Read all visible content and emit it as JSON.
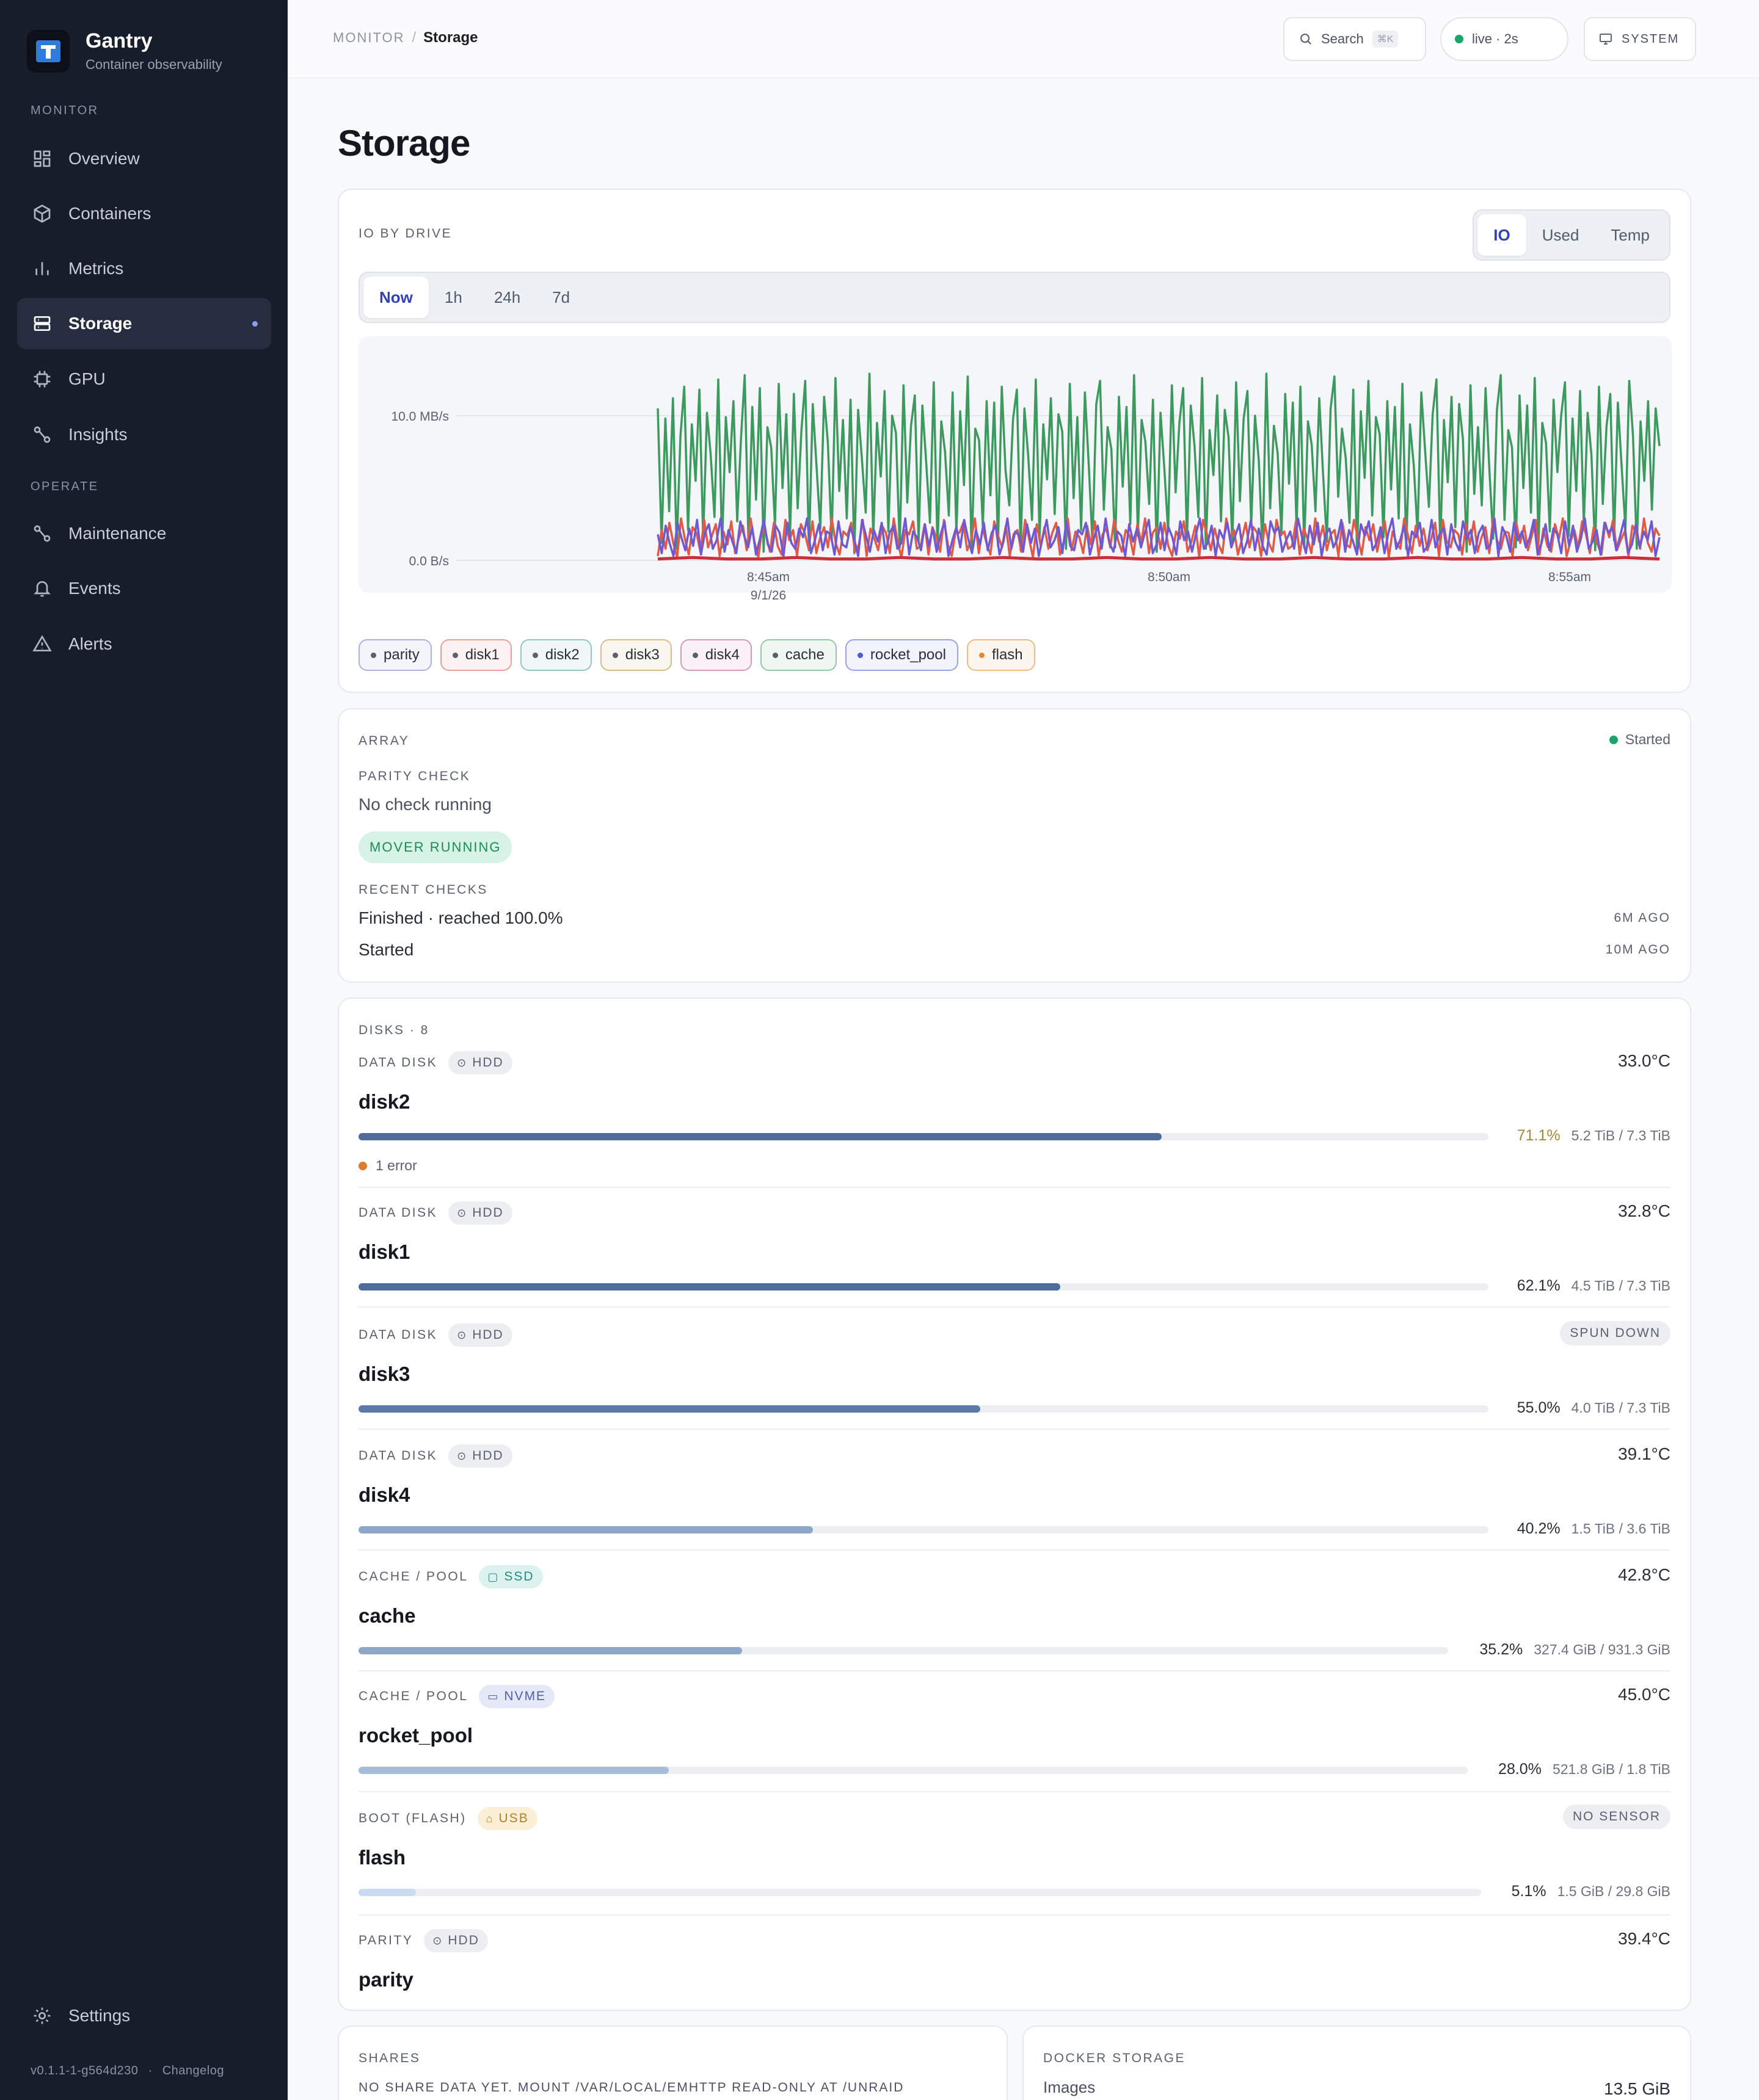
{
  "app": {
    "name": "Gantry",
    "subtitle": "Container observability"
  },
  "nav": {
    "monitor_label": "MONITOR",
    "operate_label": "OPERATE",
    "items": [
      {
        "label": "Overview",
        "icon": "grid-icon"
      },
      {
        "label": "Containers",
        "icon": "box-icon"
      },
      {
        "label": "Metrics",
        "icon": "bar-chart-icon"
      },
      {
        "label": "Storage",
        "icon": "storage-icon",
        "active": true
      },
      {
        "label": "GPU",
        "icon": "chip-icon"
      },
      {
        "label": "Insights",
        "icon": "route-icon"
      }
    ],
    "operate_items": [
      {
        "label": "Maintenance",
        "icon": "route-icon"
      },
      {
        "label": "Events",
        "icon": "bell-icon"
      },
      {
        "label": "Alerts",
        "icon": "warning-icon"
      }
    ],
    "settings": "Settings",
    "version": "v0.1.1-1-g564d230",
    "footer_sep": "·",
    "changelog": "Changelog"
  },
  "topbar": {
    "crumb_parent": "MONITOR",
    "crumb_sep": "/",
    "crumb_current": "Storage",
    "search": "Search",
    "search_kbd": "⌘K",
    "live": "live · 2s",
    "system": "SYSTEM"
  },
  "page": {
    "title": "Storage"
  },
  "io_card": {
    "label": "IO BY DRIVE",
    "modes": [
      "IO",
      "Used",
      "Temp"
    ],
    "active_mode": "IO",
    "ranges": [
      "Now",
      "1h",
      "24h",
      "7d"
    ],
    "active_range": "Now",
    "legend": [
      {
        "name": "parity",
        "color": "#6f74c9"
      },
      {
        "name": "disk1",
        "color": "#d9584a"
      },
      {
        "name": "disk2",
        "color": "#3f9e8c"
      },
      {
        "name": "disk3",
        "color": "#b58a2e"
      },
      {
        "name": "disk4",
        "color": "#b8507a"
      },
      {
        "name": "cache",
        "color": "#3f9e6a"
      },
      {
        "name": "rocket_pool",
        "color": "#4a5bd6"
      },
      {
        "name": "flash",
        "color": "#e08a2e"
      }
    ]
  },
  "chart_data": {
    "type": "line",
    "title": "",
    "ylabel": "",
    "y_ticks": [
      "10.0 MB/s",
      "0.0 B/s"
    ],
    "x_ticks": [
      "8:45am",
      "8:50am",
      "8:55am"
    ],
    "x_date": "9/1/26",
    "ylim": [
      0,
      14
    ],
    "grid": true,
    "series": [
      {
        "name": "cache",
        "color": "#3d9a5f",
        "values": [
          10.5,
          1.2,
          9.8,
          3.4,
          11.2,
          0.8,
          8.6,
          12.0,
          2.1,
          9.4,
          5.5,
          11.8,
          1.5,
          10.2,
          7.3,
          3.0,
          12.5,
          0.9,
          9.9,
          6.1,
          11.0,
          2.7,
          8.4,
          12.8,
          1.1,
          10.6,
          4.2,
          11.9,
          0.6,
          9.2,
          7.8,
          2.4,
          12.2,
          5.0,
          10.1,
          1.8,
          11.5,
          3.6,
          9.0,
          12.4,
          0.7,
          10.8,
          6.5,
          2.2,
          11.3,
          8.1,
          1.4,
          12.6,
          4.8,
          9.7,
          2.9,
          11.1,
          0.5,
          10.4,
          7.0,
          3.3,
          12.9,
          1.6,
          9.5,
          5.8,
          11.7,
          2.0,
          10.0,
          8.8,
          0.9,
          12.1,
          4.0,
          9.3,
          11.4,
          1.3,
          10.7,
          6.8,
          2.6,
          12.3,
          0.8,
          9.6,
          7.5,
          3.1,
          11.6,
          1.9,
          10.3,
          5.2,
          12.7,
          0.6,
          9.1,
          8.3,
          2.3,
          11.0,
          4.5,
          10.9,
          1.0,
          12.0,
          6.2,
          3.8,
          9.8,
          11.8,
          0.7,
          10.5,
          7.2,
          2.8,
          12.5,
          1.5,
          9.4,
          5.6,
          11.2,
          3.2,
          10.1,
          8.9,
          0.8,
          12.2,
          4.3,
          9.9,
          2.1,
          11.6,
          6.7,
          1.2,
          10.8,
          12.4,
          3.5,
          9.2,
          7.7,
          0.9,
          11.3,
          5.1,
          10.6,
          2.5,
          12.8,
          1.7,
          9.7,
          8.2,
          3.9,
          11.1,
          0.6,
          10.2,
          6.4,
          2.0,
          12.1,
          4.7,
          9.5,
          11.9,
          1.4,
          10.7,
          7.9,
          3.0,
          12.6,
          0.8,
          9.0,
          5.9,
          11.4,
          2.7,
          10.4,
          8.5,
          1.1,
          12.3,
          4.1,
          9.8,
          11.7,
          2.4,
          10.0,
          6.9,
          0.7,
          12.9,
          3.6,
          9.3,
          7.4,
          1.8,
          11.5,
          5.3,
          10.9,
          2.2,
          12.0,
          0.9,
          9.6,
          8.0,
          3.4,
          11.2,
          6.0,
          1.3,
          10.5,
          12.7,
          4.4,
          9.1,
          7.1,
          2.6,
          11.8,
          0.5,
          10.3,
          5.7,
          12.4,
          3.1,
          9.9,
          8.7,
          1.6,
          11.0,
          4.9,
          10.6,
          2.9,
          12.2,
          0.8,
          9.4,
          6.6,
          1.9,
          11.6,
          7.6,
          3.7,
          10.1,
          12.5,
          1.0,
          9.7,
          5.4,
          11.3,
          2.3,
          10.8,
          8.4,
          0.6,
          12.1,
          4.6,
          9.2,
          3.8,
          11.9,
          6.3,
          1.5,
          10.4,
          12.8,
          2.8,
          9.0,
          7.8,
          0.9,
          11.4,
          5.0,
          10.7,
          3.3,
          12.6,
          1.2,
          9.5,
          8.1,
          2.0,
          11.1,
          6.1,
          10.0,
          12.3,
          1.7,
          9.8,
          4.8,
          11.7,
          2.5,
          10.2,
          7.3,
          0.7,
          12.0,
          3.9,
          9.3,
          11.5,
          1.4,
          10.9,
          6.5,
          2.2,
          12.4,
          8.6,
          0.8,
          9.6,
          5.5,
          11.0,
          3.5,
          10.5,
          7.9
        ]
      },
      {
        "name": "disk1",
        "color": "#e25a46",
        "values": [
          0.3,
          2.1,
          0.8,
          2.6,
          1.2,
          0.2,
          2.9,
          1.5,
          0.4,
          2.3,
          1.9,
          0.6,
          2.8,
          0.9,
          1.7,
          2.5,
          0.3,
          2.0,
          1.1,
          2.7,
          0.5,
          1.6,
          2.4,
          0.7,
          2.9,
          1.3,
          0.2,
          2.2,
          1.8,
          0.6,
          2.6,
          1.0,
          0.4,
          2.8,
          1.4,
          2.1,
          0.3,
          2.5,
          1.9,
          0.8,
          2.7,
          0.5,
          1.6,
          2.3,
          0.9,
          2.9,
          1.2,
          0.4,
          2.0,
          1.7,
          2.6,
          0.6,
          1.1,
          2.8,
          0.3,
          2.2,
          1.5,
          0.7,
          2.4,
          1.9,
          0.5,
          2.9,
          1.3,
          0.2,
          2.1,
          1.8,
          2.7,
          0.8,
          1.0,
          2.5,
          0.4,
          2.3,
          1.6,
          0.6,
          2.8,
          1.1,
          0.3,
          2.0,
          1.9,
          2.6,
          0.7,
          1.4,
          2.9,
          0.5,
          2.2,
          1.2,
          0.4,
          2.7,
          1.7,
          0.9,
          2.4,
          0.3,
          1.8,
          2.1,
          0.6,
          2.8,
          1.5,
          0.2,
          2.5,
          1.0,
          2.3,
          0.8,
          1.9,
          2.6,
          0.4,
          1.3,
          2.9,
          0.7,
          2.0,
          1.6,
          0.5,
          2.4,
          1.1,
          2.7,
          0.3,
          1.8,
          2.2,
          0.9,
          2.8,
          1.4,
          0.6,
          2.1,
          1.7,
          0.4,
          2.5,
          1.2,
          2.9,
          0.5,
          1.9,
          2.3,
          0.8,
          2.6,
          1.0,
          0.3,
          2.0,
          1.5,
          2.7,
          0.6,
          1.3,
          2.4,
          0.2,
          2.8,
          1.8,
          0.7,
          2.2,
          1.1,
          0.5,
          2.9,
          1.6,
          2.1,
          0.4,
          1.4,
          2.6,
          0.9,
          2.3,
          1.9,
          0.3,
          2.5,
          1.2,
          0.6,
          2.8,
          1.7,
          2.0,
          0.8,
          1.0,
          2.7,
          0.4,
          2.2,
          1.5,
          0.5,
          2.9,
          1.3,
          2.4,
          0.7,
          1.8,
          2.1,
          0.3,
          2.6,
          1.1,
          0.9,
          2.8,
          1.6,
          0.4,
          2.3,
          1.4,
          2.5,
          0.6,
          1.9,
          2.7,
          0.2,
          2.0,
          1.2,
          0.8,
          2.9,
          1.7,
          0.5,
          2.4,
          1.0,
          2.2,
          0.7,
          1.5,
          2.6,
          0.3,
          2.8,
          1.3,
          0.9,
          2.1,
          1.8,
          0.4,
          2.5,
          1.1,
          2.7,
          0.6,
          1.6,
          2.3,
          0.5,
          2.9,
          1.4,
          0.8,
          2.0,
          1.9,
          0.3,
          2.6,
          1.2,
          2.4,
          0.7,
          1.7,
          2.8,
          0.4,
          2.2,
          1.0,
          0.6,
          2.5,
          1.5,
          2.9,
          0.3,
          1.3,
          2.1,
          0.9,
          2.7,
          1.8,
          0.5,
          2.3,
          1.1,
          0.4,
          2.6,
          1.6,
          2.8,
          0.7,
          1.4,
          2.0,
          0.3,
          2.4,
          1.9,
          0.8,
          2.9,
          1.2,
          0.6,
          2.2,
          1.7
        ]
      },
      {
        "name": "rocket_pool",
        "color": "#6e58d4",
        "values": [
          1.8,
          0.5,
          2.4,
          1.2,
          0.3,
          2.6,
          1.6,
          0.7,
          2.2,
          1.0,
          2.8,
          0.4,
          1.9,
          2.5,
          0.8,
          1.4,
          2.9,
          0.6,
          2.1,
          1.3,
          0.5,
          2.7,
          1.7,
          0.9,
          2.3,
          0.4,
          1.5,
          2.8,
          1.1,
          0.6,
          2.4,
          1.9,
          0.3,
          2.6,
          1.2,
          0.8,
          2.2,
          1.6,
          2.9,
          0.5,
          1.4,
          2.5,
          0.7,
          2.0,
          1.8,
          0.4,
          2.7,
          1.1,
          0.9,
          2.3,
          1.5,
          0.3,
          2.8,
          1.7,
          0.6,
          2.1,
          1.3,
          2.6,
          0.5,
          1.9,
          2.4,
          0.8,
          1.2,
          2.9,
          0.4,
          2.0,
          1.6,
          0.7,
          2.5,
          1.0,
          2.2,
          0.6,
          1.8,
          2.7,
          0.3,
          1.4,
          2.3,
          0.9,
          2.8,
          1.5,
          0.5,
          2.1,
          1.1,
          2.6,
          0.7,
          1.9,
          2.4,
          0.4,
          1.3,
          2.9,
          0.8,
          2.0,
          1.7,
          0.6,
          2.5,
          1.2,
          2.2,
          0.3,
          1.6,
          2.8,
          0.9,
          1.4,
          2.3,
          0.5,
          2.7,
          1.0,
          0.7,
          2.1,
          1.8,
          2.6,
          0.4,
          1.5,
          2.4,
          0.8,
          2.9,
          1.2,
          0.6,
          2.0,
          1.7,
          0.3,
          2.5,
          1.3,
          2.2,
          0.9,
          1.9,
          2.8,
          0.5,
          1.1,
          2.6,
          0.7,
          2.3,
          1.6,
          0.4,
          2.7,
          1.4,
          2.0,
          0.6,
          1.8,
          2.9,
          0.8,
          1.2,
          2.4,
          0.3,
          2.1,
          1.5,
          2.6,
          0.9,
          1.7,
          2.5,
          0.5,
          1.3,
          2.8,
          0.7,
          2.2,
          1.0,
          0.4,
          2.7,
          1.9,
          2.3,
          0.6,
          1.4,
          2.0,
          0.8,
          2.9,
          1.6,
          0.5,
          2.4,
          1.1,
          2.6,
          0.3,
          1.8,
          2.2,
          0.9,
          1.5,
          2.8,
          0.6,
          2.1,
          1.3,
          0.4,
          2.5,
          1.7,
          2.7,
          0.7,
          1.2,
          2.3,
          0.5,
          1.9,
          2.9,
          0.8,
          1.4,
          2.4,
          0.3,
          2.0,
          1.6,
          2.6,
          0.6,
          1.0,
          2.8,
          0.9,
          1.8,
          2.2,
          0.4,
          2.5,
          1.3,
          0.7,
          2.7,
          1.5,
          2.1,
          0.5,
          1.9,
          2.4,
          0.8,
          1.1,
          2.9,
          0.3,
          2.3,
          1.7,
          0.6,
          2.6,
          1.4,
          2.0,
          0.9,
          1.6,
          2.8,
          0.4,
          1.2,
          2.5,
          0.7,
          2.2,
          1.8,
          0.5,
          2.7,
          1.0,
          2.4,
          0.6,
          1.5,
          2.9,
          0.8,
          1.3,
          2.1,
          0.4,
          2.6,
          1.9,
          2.3,
          0.7,
          1.7,
          2.8,
          0.5,
          1.1,
          2.5,
          0.9,
          2.0,
          1.4,
          2.7,
          0.3,
          1.6
        ]
      },
      {
        "name": "parity",
        "color": "#c9303a",
        "values": [
          0.1,
          0.2,
          0.1,
          0.1,
          0.2,
          0.1,
          0.1,
          0.2,
          0.1,
          0.1,
          0.2,
          0.1,
          0.1,
          0.2,
          0.1,
          0.1,
          0.2,
          0.1,
          0.1,
          0.2,
          0.1,
          0.1,
          0.2,
          0.1,
          0.1,
          0.2,
          0.1,
          0.1,
          0.2,
          0.1
        ]
      }
    ]
  },
  "array_card": {
    "label": "ARRAY",
    "status": "Started",
    "parity_label": "PARITY CHECK",
    "parity_text": "No check running",
    "mover_badge": "MOVER RUNNING",
    "recent_label": "RECENT CHECKS",
    "checks": [
      {
        "text": "Finished · reached 100.0%",
        "ago": "6M AGO"
      },
      {
        "text": "Started",
        "ago": "10M AGO"
      }
    ]
  },
  "disks_card": {
    "label": "DISKS · 8",
    "disks": [
      {
        "type": "DATA DISK",
        "media": "HDD",
        "name": "disk2",
        "temp": "33.0°C",
        "pct": "71.1%",
        "fill": 0.711,
        "size": "5.2 TiB / 7.3 TiB",
        "color": "#4f6d9b",
        "error": "1 error"
      },
      {
        "type": "DATA DISK",
        "media": "HDD",
        "name": "disk1",
        "temp": "32.8°C",
        "pct": "62.1%",
        "fill": 0.621,
        "size": "4.5 TiB / 7.3 TiB",
        "color": "#4f6d9b"
      },
      {
        "type": "DATA DISK",
        "media": "HDD",
        "name": "disk3",
        "state": "SPUN DOWN",
        "pct": "55.0%",
        "fill": 0.55,
        "size": "4.0 TiB / 7.3 TiB",
        "color": "#5a7aa9"
      },
      {
        "type": "DATA DISK",
        "media": "HDD",
        "name": "disk4",
        "temp": "39.1°C",
        "pct": "40.2%",
        "fill": 0.402,
        "size": "1.5 TiB / 3.6 TiB",
        "color": "#8ea6c8"
      },
      {
        "type": "CACHE / POOL",
        "media": "SSD",
        "name": "cache",
        "temp": "42.8°C",
        "pct": "35.2%",
        "fill": 0.352,
        "size": "327.4 GiB / 931.3 GiB",
        "color": "#8ea6c8"
      },
      {
        "type": "CACHE / POOL",
        "media": "NVME",
        "name": "rocket_pool",
        "temp": "45.0°C",
        "pct": "28.0%",
        "fill": 0.28,
        "size": "521.8 GiB / 1.8 TiB",
        "color": "#a6bcd9"
      },
      {
        "type": "BOOT (FLASH)",
        "media": "USB",
        "name": "flash",
        "state": "NO SENSOR",
        "pct": "5.1%",
        "fill": 0.051,
        "size": "1.5 GiB / 29.8 GiB",
        "color": "#c9dbf3"
      },
      {
        "type": "PARITY",
        "media": "HDD",
        "name": "parity",
        "temp": "39.4°C"
      }
    ]
  },
  "shares_card": {
    "label": "SHARES",
    "message": "NO SHARE DATA YET. MOUNT /VAR/LOCAL/EMHTTP READ-ONLY AT /UNRAID"
  },
  "docker_card": {
    "label": "DOCKER STORAGE",
    "images_label": "Images",
    "images_value": "13.5 GiB"
  }
}
